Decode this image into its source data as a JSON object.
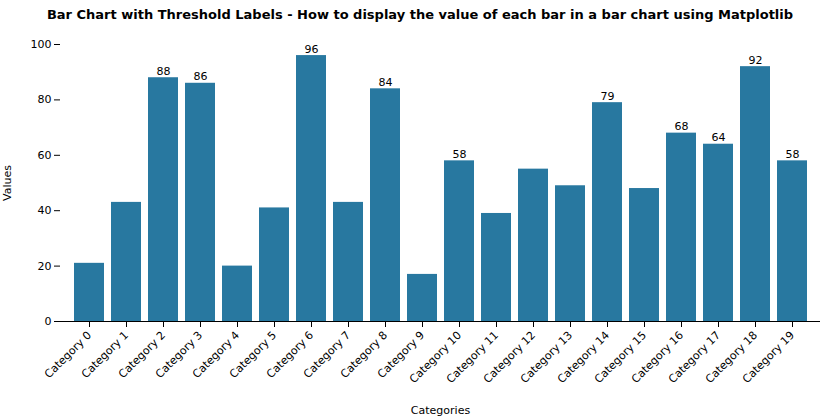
{
  "chart_data": {
    "type": "bar",
    "title": "Bar Chart with Threshold Labels - How to display the value of each bar in a bar chart using Matplotlib",
    "xlabel": "Categories",
    "ylabel": "Values",
    "categories": [
      "Category 0",
      "Category 1",
      "Category 2",
      "Category 3",
      "Category 4",
      "Category 5",
      "Category 6",
      "Category 7",
      "Category 8",
      "Category 9",
      "Category 10",
      "Category 11",
      "Category 12",
      "Category 13",
      "Category 14",
      "Category 15",
      "Category 16",
      "Category 17",
      "Category 18",
      "Category 19"
    ],
    "values": [
      21,
      43,
      88,
      86,
      20,
      41,
      96,
      43,
      84,
      17,
      58,
      39,
      55,
      49,
      79,
      48,
      68,
      64,
      92,
      58
    ],
    "value_labels": [
      null,
      null,
      "88",
      "86",
      null,
      null,
      "96",
      null,
      "84",
      null,
      "58",
      null,
      null,
      null,
      "79",
      null,
      "68",
      "64",
      "92",
      "58"
    ],
    "data_labels": true,
    "color": "#2878a0",
    "ylim": [
      0,
      100
    ],
    "yticks": [
      0,
      20,
      40,
      60,
      80,
      100
    ],
    "grid": false
  }
}
